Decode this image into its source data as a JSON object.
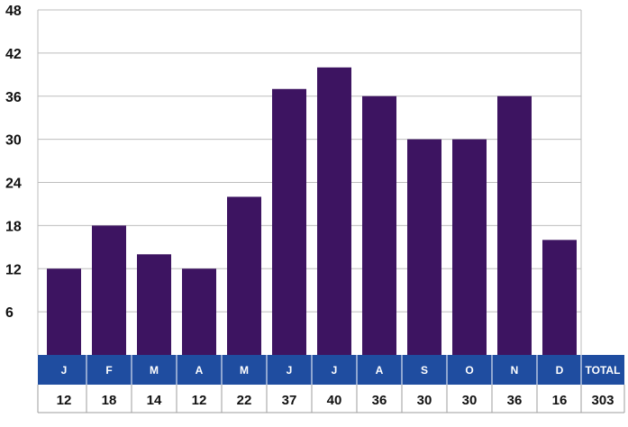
{
  "chart_data": {
    "type": "bar",
    "title": "",
    "xlabel": "",
    "ylabel": "",
    "ylim": [
      0,
      48
    ],
    "yticks": [
      6,
      12,
      18,
      24,
      30,
      36,
      42,
      48
    ],
    "categories": [
      "J",
      "F",
      "M",
      "A",
      "M",
      "J",
      "J",
      "A",
      "S",
      "O",
      "N",
      "D"
    ],
    "values": [
      12,
      18,
      14,
      12,
      22,
      37,
      40,
      36,
      30,
      30,
      36,
      16
    ],
    "table": {
      "header_total_label": "TOTAL",
      "total_value": 303
    },
    "grid": true,
    "legend": "none"
  },
  "colors": {
    "bar": "#3d1461",
    "header_bg": "#1f4da0",
    "grid": "#bdbdbd",
    "border": "#9e9e9e"
  }
}
